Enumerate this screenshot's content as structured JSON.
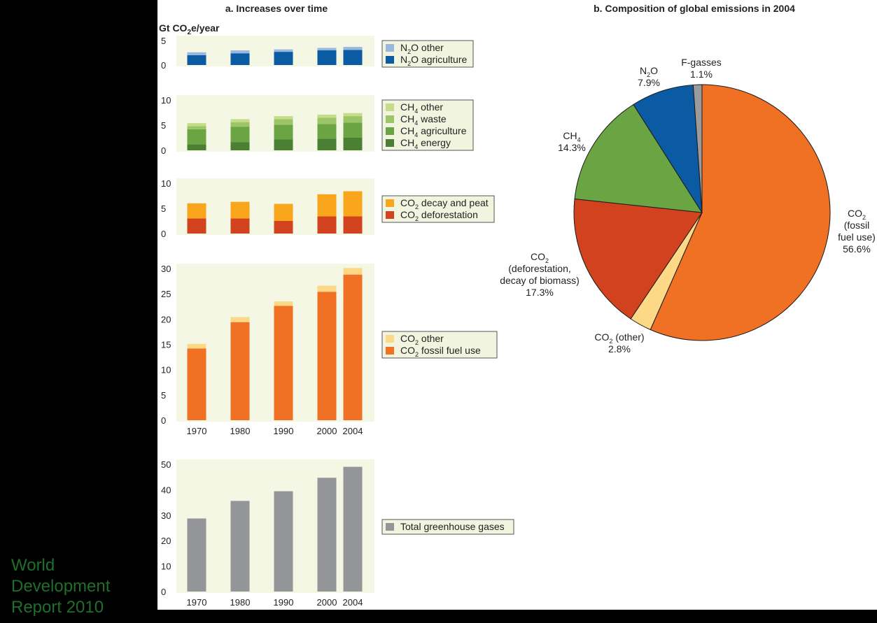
{
  "watermark": [
    "World",
    "Development",
    "Report 2010"
  ],
  "panel_a_title": "a. Increases over time",
  "panel_b_title": "b. Composition of global emissions in 2004",
  "unit_label": "Gt CO2e/year",
  "colors": {
    "background": "#000000",
    "panel": "#ffffff",
    "plot_bg": "#f3f7e4",
    "n2o_other": "#9ab8df",
    "n2o_agriculture": "#0b5aa4",
    "ch4_other": "#c6dc8a",
    "ch4_waste": "#9cc567",
    "ch4_agriculture": "#6aa443",
    "ch4_energy": "#4a7f34",
    "co2_decay_peat": "#f9a61c",
    "co2_deforestation": "#d2421f",
    "co2_other": "#fdd886",
    "co2_fossil_fuel": "#f07024",
    "total_ghg": "#939598",
    "f_gasses": "#9b9b9b",
    "legend_bg": "#f1f5df",
    "watermark": "#1f6f2a"
  },
  "chart_data": [
    {
      "id": "n2o",
      "type": "bar",
      "stacked": true,
      "categories": [
        "1970",
        "1980",
        "1990",
        "2000",
        "2004"
      ],
      "ylim": [
        0,
        5
      ],
      "yticks": [
        0,
        5
      ],
      "show_xticks": false,
      "series": [
        {
          "name": "N2O agriculture",
          "color_key": "n2o_agriculture",
          "values": [
            2.0,
            2.4,
            2.7,
            3.0,
            3.1
          ]
        },
        {
          "name": "N2O other",
          "color_key": "n2o_other",
          "values": [
            0.6,
            0.6,
            0.5,
            0.5,
            0.6
          ]
        }
      ],
      "legend": [
        {
          "base": "N",
          "sub": "2",
          "rest": "O other",
          "color_key": "n2o_other"
        },
        {
          "base": "N",
          "sub": "2",
          "rest": "O agriculture",
          "color_key": "n2o_agriculture"
        }
      ]
    },
    {
      "id": "ch4",
      "type": "bar",
      "stacked": true,
      "categories": [
        "1970",
        "1980",
        "1990",
        "2000",
        "2004"
      ],
      "ylim": [
        0,
        10
      ],
      "yticks": [
        0,
        5,
        10
      ],
      "show_xticks": false,
      "series": [
        {
          "name": "CH4 energy",
          "color_key": "ch4_energy",
          "values": [
            1.2,
            1.6,
            2.2,
            2.3,
            2.5
          ]
        },
        {
          "name": "CH4 agriculture",
          "color_key": "ch4_agriculture",
          "values": [
            3.0,
            3.1,
            2.9,
            2.9,
            3.0
          ]
        },
        {
          "name": "CH4 waste",
          "color_key": "ch4_waste",
          "values": [
            0.6,
            0.9,
            1.1,
            1.3,
            1.3
          ]
        },
        {
          "name": "CH4 other",
          "color_key": "ch4_other",
          "values": [
            0.6,
            0.6,
            0.6,
            0.6,
            0.6
          ]
        }
      ],
      "legend": [
        {
          "base": "CH",
          "sub": "4",
          "rest": " other",
          "color_key": "ch4_other"
        },
        {
          "base": "CH",
          "sub": "4",
          "rest": " waste",
          "color_key": "ch4_waste"
        },
        {
          "base": "CH",
          "sub": "4",
          "rest": " agriculture",
          "color_key": "ch4_agriculture"
        },
        {
          "base": "CH",
          "sub": "4",
          "rest": " energy",
          "color_key": "ch4_energy"
        }
      ]
    },
    {
      "id": "co2_land",
      "type": "bar",
      "stacked": true,
      "categories": [
        "1970",
        "1980",
        "1990",
        "2000",
        "2004"
      ],
      "ylim": [
        0,
        10
      ],
      "yticks": [
        0,
        5,
        10
      ],
      "show_xticks": false,
      "series": [
        {
          "name": "CO2 deforestation",
          "color_key": "co2_deforestation",
          "values": [
            3.0,
            3.0,
            2.5,
            3.4,
            3.4
          ]
        },
        {
          "name": "CO2 decay and peat",
          "color_key": "co2_decay_peat",
          "values": [
            3.0,
            3.3,
            3.4,
            4.4,
            5.0
          ]
        }
      ],
      "legend": [
        {
          "base": "CO",
          "sub": "2",
          "rest": " decay and peat",
          "color_key": "co2_decay_peat"
        },
        {
          "base": "CO",
          "sub": "2",
          "rest": " deforestation",
          "color_key": "co2_deforestation"
        }
      ]
    },
    {
      "id": "co2_fossil",
      "type": "bar",
      "stacked": true,
      "categories": [
        "1970",
        "1980",
        "1990",
        "2000",
        "2004"
      ],
      "ylim": [
        0,
        30
      ],
      "yticks": [
        0,
        5,
        10,
        15,
        20,
        25,
        30
      ],
      "show_xticks": true,
      "series": [
        {
          "name": "CO2 fossil fuel use",
          "color_key": "co2_fossil_fuel",
          "values": [
            14.2,
            19.4,
            22.6,
            25.4,
            28.8
          ]
        },
        {
          "name": "CO2 other",
          "color_key": "co2_other",
          "values": [
            0.9,
            1.0,
            0.9,
            1.2,
            1.3
          ]
        }
      ],
      "legend": [
        {
          "base": "CO",
          "sub": "2",
          "rest": " other",
          "color_key": "co2_other"
        },
        {
          "base": "CO",
          "sub": "2",
          "rest": " fossil fuel use",
          "color_key": "co2_fossil_fuel"
        }
      ]
    },
    {
      "id": "total",
      "type": "bar",
      "stacked": false,
      "categories": [
        "1970",
        "1980",
        "1990",
        "2000",
        "2004"
      ],
      "ylim": [
        0,
        50
      ],
      "yticks": [
        0,
        10,
        20,
        30,
        40,
        50
      ],
      "show_xticks": true,
      "series": [
        {
          "name": "Total greenhouse gases",
          "color_key": "total_ghg",
          "values": [
            28.7,
            35.6,
            39.4,
            44.7,
            49.0
          ]
        }
      ],
      "legend": [
        {
          "base": "Total greenhouse gases",
          "sub": "",
          "rest": "",
          "color_key": "total_ghg"
        }
      ]
    },
    {
      "id": "composition_2004",
      "type": "pie",
      "title": "b. Composition of global emissions in 2004",
      "slices": [
        {
          "name": "CO2 (fossil fuel use)",
          "value": 56.6,
          "color_key": "co2_fossil_fuel",
          "label_lines": [
            {
              "base": "CO",
              "sub": "2"
            },
            {
              "base": "(fossil"
            },
            {
              "base": "fuel use)"
            },
            {
              "base": "56.6%"
            }
          ]
        },
        {
          "name": "CO2 (other)",
          "value": 2.8,
          "color_key": "co2_other",
          "label_lines": [
            {
              "base": "CO",
              "sub": "2",
              "rest": " (other)"
            },
            {
              "base": "2.8%"
            }
          ]
        },
        {
          "name": "CO2 (deforestation, decay of biomass)",
          "value": 17.3,
          "color_key": "co2_deforestation",
          "label_lines": [
            {
              "base": "CO",
              "sub": "2"
            },
            {
              "base": "(deforestation,"
            },
            {
              "base": "decay of biomass)"
            },
            {
              "base": "17.3%"
            }
          ]
        },
        {
          "name": "CH4",
          "value": 14.3,
          "color_key": "ch4_agriculture",
          "label_lines": [
            {
              "base": "CH",
              "sub": "4"
            },
            {
              "base": "14.3%"
            }
          ]
        },
        {
          "name": "N2O",
          "value": 7.9,
          "color_key": "n2o_agriculture",
          "label_lines": [
            {
              "base": "N",
              "sub": "2",
              "rest": "O"
            },
            {
              "base": "7.9%"
            }
          ]
        },
        {
          "name": "F-gasses",
          "value": 1.1,
          "color_key": "f_gasses",
          "label_lines": [
            {
              "base": "F-gasses"
            },
            {
              "base": "1.1%"
            }
          ]
        }
      ]
    }
  ]
}
